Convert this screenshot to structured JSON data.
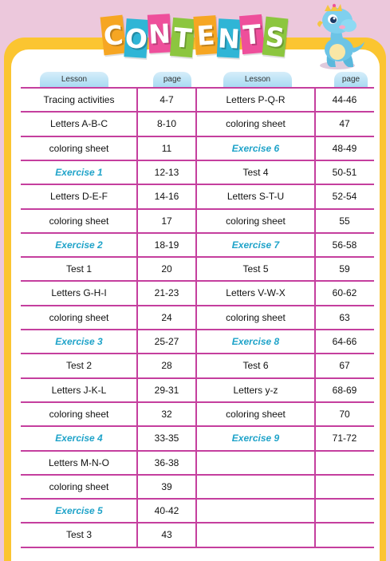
{
  "title_letters": [
    "C",
    "O",
    "N",
    "T",
    "E",
    "N",
    "T",
    "S"
  ],
  "title_colors": [
    "#f6a623",
    "#2fb5d6",
    "#ee4f9b",
    "#8cc63f",
    "#f6a623",
    "#2fb5d6",
    "#ee4f9b",
    "#8cc63f"
  ],
  "headers": {
    "lesson": "Lesson",
    "page": "page"
  },
  "left_rows": [
    {
      "lesson": "Tracing activities",
      "page": "4-7",
      "exercise": false
    },
    {
      "lesson": "Letters A-B-C",
      "page": "8-10",
      "exercise": false
    },
    {
      "lesson": "coloring sheet",
      "page": "11",
      "exercise": false
    },
    {
      "lesson": "Exercise 1",
      "page": "12-13",
      "exercise": true
    },
    {
      "lesson": "Letters D-E-F",
      "page": "14-16",
      "exercise": false
    },
    {
      "lesson": "coloring sheet",
      "page": "17",
      "exercise": false
    },
    {
      "lesson": "Exercise 2",
      "page": "18-19",
      "exercise": true
    },
    {
      "lesson": "Test 1",
      "page": "20",
      "exercise": false
    },
    {
      "lesson": "Letters G-H-I",
      "page": "21-23",
      "exercise": false
    },
    {
      "lesson": "coloring sheet",
      "page": "24",
      "exercise": false
    },
    {
      "lesson": "Exercise 3",
      "page": "25-27",
      "exercise": true
    },
    {
      "lesson": "Test 2",
      "page": "28",
      "exercise": false
    },
    {
      "lesson": "Letters J-K-L",
      "page": "29-31",
      "exercise": false
    },
    {
      "lesson": "coloring sheet",
      "page": "32",
      "exercise": false
    },
    {
      "lesson": "Exercise 4",
      "page": "33-35",
      "exercise": true
    },
    {
      "lesson": "Letters M-N-O",
      "page": "36-38",
      "exercise": false
    },
    {
      "lesson": "coloring sheet",
      "page": "39",
      "exercise": false
    },
    {
      "lesson": "Exercise 5",
      "page": "40-42",
      "exercise": true
    },
    {
      "lesson": "Test 3",
      "page": "43",
      "exercise": false
    }
  ],
  "right_rows": [
    {
      "lesson": "Letters P-Q-R",
      "page": "44-46",
      "exercise": false
    },
    {
      "lesson": "coloring sheet",
      "page": "47",
      "exercise": false
    },
    {
      "lesson": "Exercise 6",
      "page": "48-49",
      "exercise": true
    },
    {
      "lesson": "Test 4",
      "page": "50-51",
      "exercise": false
    },
    {
      "lesson": "Letters S-T-U",
      "page": "52-54",
      "exercise": false
    },
    {
      "lesson": "coloring sheet",
      "page": "55",
      "exercise": false
    },
    {
      "lesson": "Exercise 7",
      "page": "56-58",
      "exercise": true
    },
    {
      "lesson": "Test 5",
      "page": "59",
      "exercise": false
    },
    {
      "lesson": "Letters V-W-X",
      "page": "60-62",
      "exercise": false
    },
    {
      "lesson": "coloring sheet",
      "page": "63",
      "exercise": false
    },
    {
      "lesson": "Exercise 8",
      "page": "64-66",
      "exercise": true
    },
    {
      "lesson": "Test 6",
      "page": "67",
      "exercise": false
    },
    {
      "lesson": "Letters y-z",
      "page": "68-69",
      "exercise": false
    },
    {
      "lesson": "coloring sheet",
      "page": "70",
      "exercise": false
    },
    {
      "lesson": "Exercise 9",
      "page": "71-72",
      "exercise": true
    }
  ],
  "colors": {
    "background": "#ecc8dc",
    "frame": "#fbc531",
    "grid_lines": "#c53f9e",
    "exercise_text": "#1fa3c9",
    "header_fill": "#bfe4f6"
  },
  "mascot_icon": "baby-dinosaur-icon"
}
